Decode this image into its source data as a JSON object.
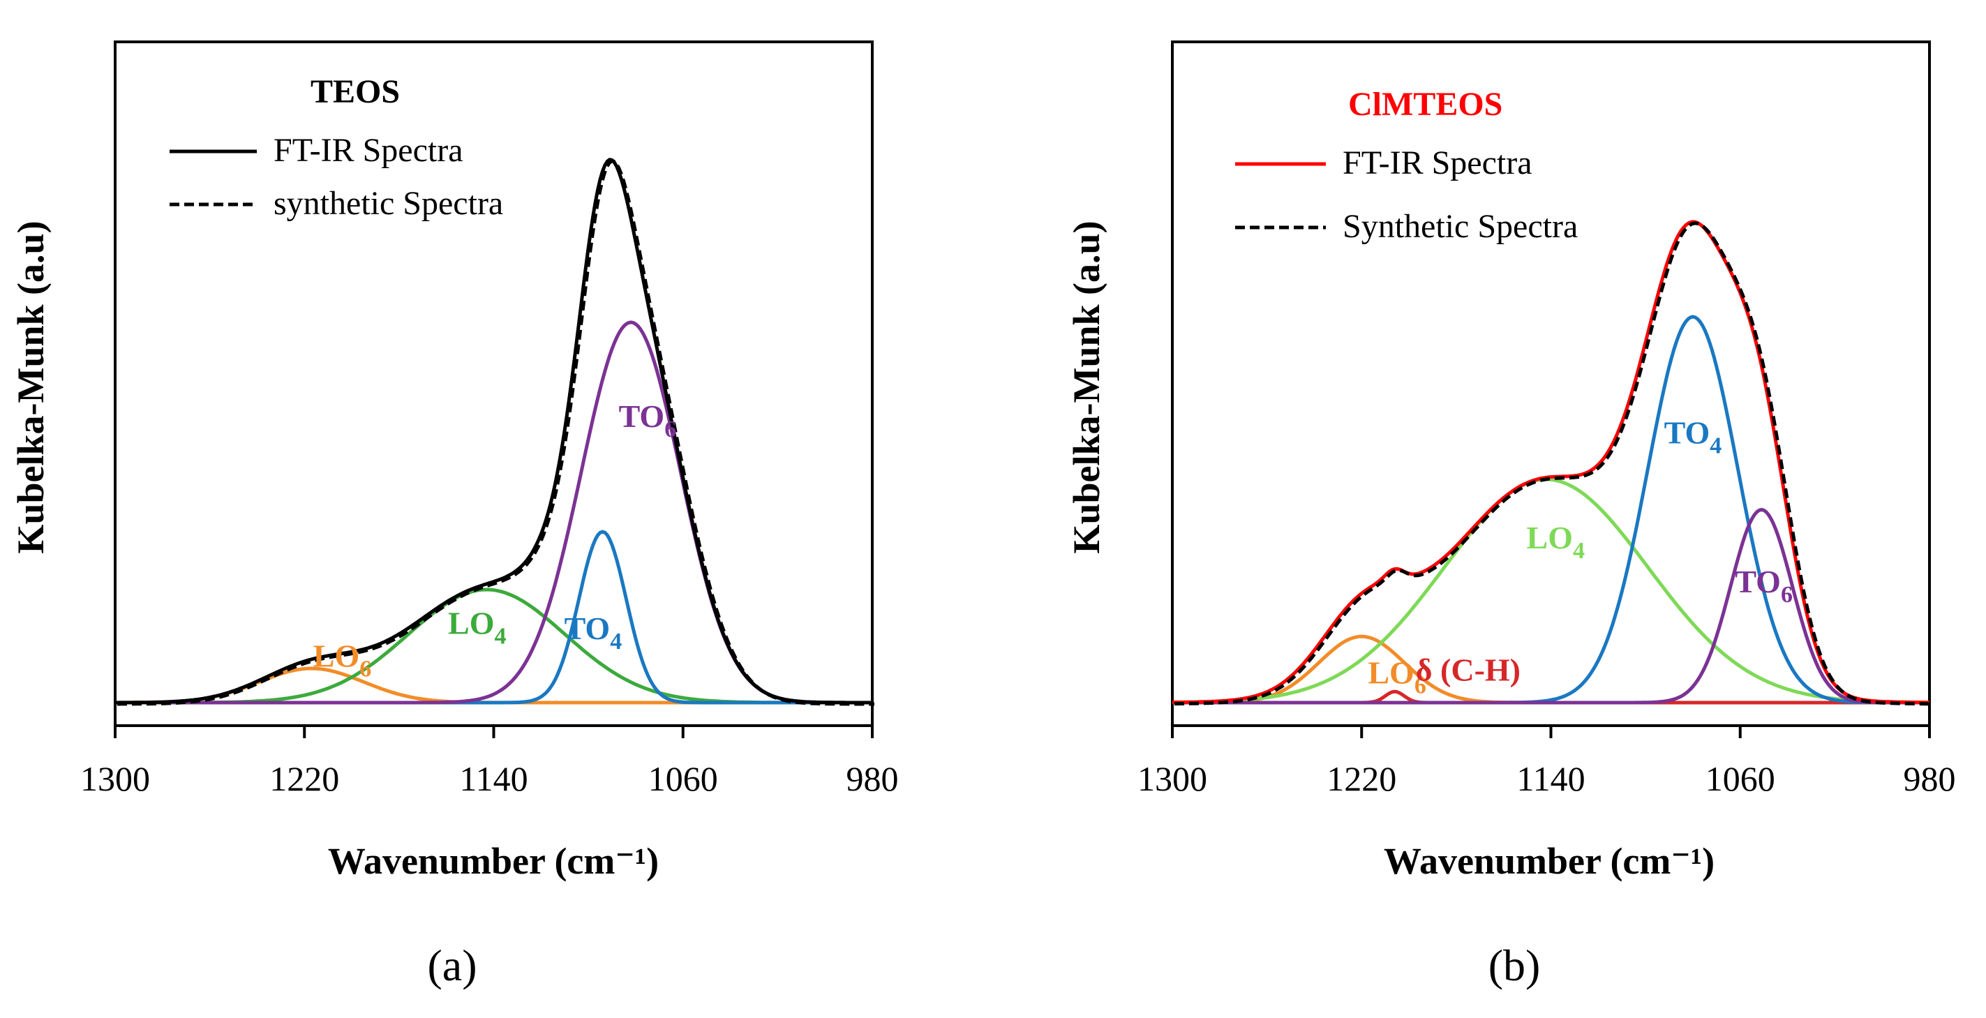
{
  "chart_data": [
    {
      "panel": "a",
      "type": "line",
      "title": "TEOS",
      "title_color": "#000000",
      "xlabel": "Wavenumber (cm⁻¹)",
      "ylabel": "Kubelka-Munk (a.u)",
      "xlim": [
        1300,
        980
      ],
      "x_reversed": true,
      "x_ticks": [
        "1300",
        "1220",
        "1140",
        "1060",
        "980"
      ],
      "y_ticks": [],
      "grid": false,
      "legend_position": "top-left",
      "legend": [
        {
          "label": "FT-IR Spectra",
          "color": "#000000",
          "dashed": false
        },
        {
          "label": "synthetic Spectra",
          "color": "#000000",
          "dashed": true
        }
      ],
      "series": [
        {
          "name": "LO6",
          "label_main": "LO",
          "label_sub": "6",
          "label_at": [
            1204,
            0.065
          ],
          "color": "#f28c28",
          "center": 1217,
          "amp": 0.062,
          "sigma": 22
        },
        {
          "name": "LO4",
          "label_main": "LO",
          "label_sub": "4",
          "label_at": [
            1147,
            0.125
          ],
          "color": "#3caa3c",
          "center": 1143,
          "amp": 0.205,
          "sigma": 33
        },
        {
          "name": "TO4",
          "label_main": "TO",
          "label_sub": "4",
          "label_at": [
            1098,
            0.115
          ],
          "color": "#1a78c2",
          "center": 1094,
          "amp": 0.31,
          "sigma": 10
        },
        {
          "name": "TO6",
          "label_main": "TO",
          "label_sub": "6",
          "label_at": [
            1075,
            0.5
          ],
          "color": "#7b3294",
          "center": 1082,
          "amp": 0.69,
          "sigma": 21
        }
      ],
      "total_color": "#000000"
    },
    {
      "panel": "b",
      "type": "line",
      "title": "ClMTEOS",
      "title_color": "#ff0000",
      "xlabel": "Wavenumber (cm⁻¹)",
      "ylabel": "Kubelka-Munk (a.u)",
      "xlim": [
        1300,
        980
      ],
      "x_reversed": true,
      "x_ticks": [
        "1300",
        "1220",
        "1140",
        "1060",
        "980"
      ],
      "y_ticks": [],
      "grid": false,
      "legend_position": "top-left",
      "legend": [
        {
          "label": "FT-IR Spectra",
          "color": "#ff0000",
          "dashed": false
        },
        {
          "label": "Synthetic Spectra",
          "color": "#000000",
          "dashed": true
        }
      ],
      "series": [
        {
          "name": "LO6",
          "label_main": "LO",
          "label_sub": "6",
          "label_at": [
            1205,
            0.035
          ],
          "color": "#f28c28",
          "center": 1220,
          "amp": 0.12,
          "sigma": 18
        },
        {
          "name": "δ (C-H)",
          "label_main": "δ (C-H)",
          "label_sub": "",
          "label_at": [
            1175,
            0.04
          ],
          "color": "#d62728",
          "center": 1206,
          "amp": 0.02,
          "sigma": 4
        },
        {
          "name": "LO4",
          "label_main": "LO",
          "label_sub": "4",
          "label_at": [
            1138,
            0.28
          ],
          "color": "#7ed957",
          "center": 1142,
          "amp": 0.405,
          "sigma": 43
        },
        {
          "name": "TO4",
          "label_main": "TO",
          "label_sub": "4",
          "label_at": [
            1080,
            0.47
          ],
          "color": "#1a78c2",
          "center": 1080,
          "amp": 0.7,
          "sigma": 19
        },
        {
          "name": "TO6",
          "label_main": "TO",
          "label_sub": "6",
          "label_at": [
            1050,
            0.2
          ],
          "color": "#7b3294",
          "center": 1051,
          "amp": 0.35,
          "sigma": 13
        }
      ],
      "total_color": "#ff0000"
    }
  ],
  "panel_labels": [
    "(a)",
    "(b)"
  ]
}
